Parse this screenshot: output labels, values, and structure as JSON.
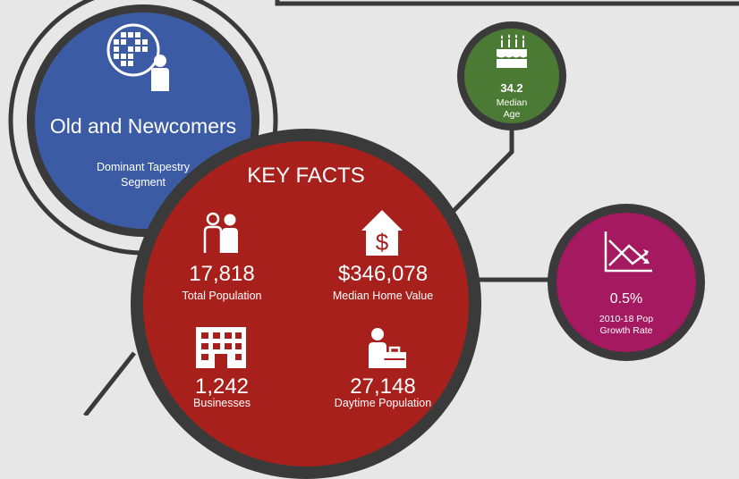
{
  "segment": {
    "title": "Old and Newcomers",
    "subtitle_line1": "Dominant Tapestry",
    "subtitle_line2": "Segment",
    "color": "#3b5ba5",
    "icon": "tapestry-person-icon"
  },
  "key_facts": {
    "heading": "KEY FACTS",
    "color": "#a8201c",
    "items": [
      {
        "value": "17,818",
        "label": "Total Population",
        "icon": "people-icon"
      },
      {
        "value": "$346,078",
        "label": "Median Home Value",
        "icon": "house-dollar-icon"
      },
      {
        "value": "1,242",
        "label": "Businesses",
        "icon": "building-icon"
      },
      {
        "value": "27,148",
        "label": "Daytime Population",
        "icon": "worker-briefcase-icon"
      }
    ]
  },
  "median_age": {
    "value": "34.2",
    "label_line1": "Median",
    "label_line2": "Age",
    "color": "#4b7a35",
    "icon": "birthday-cake-icon"
  },
  "growth": {
    "value": "0.5%",
    "label_line1": "2010-18 Pop",
    "label_line2": "Growth Rate",
    "color": "#a4195f",
    "icon": "trend-chart-icon"
  },
  "colors": {
    "ring": "#3a3a3a",
    "background": "#e7e7e7"
  }
}
